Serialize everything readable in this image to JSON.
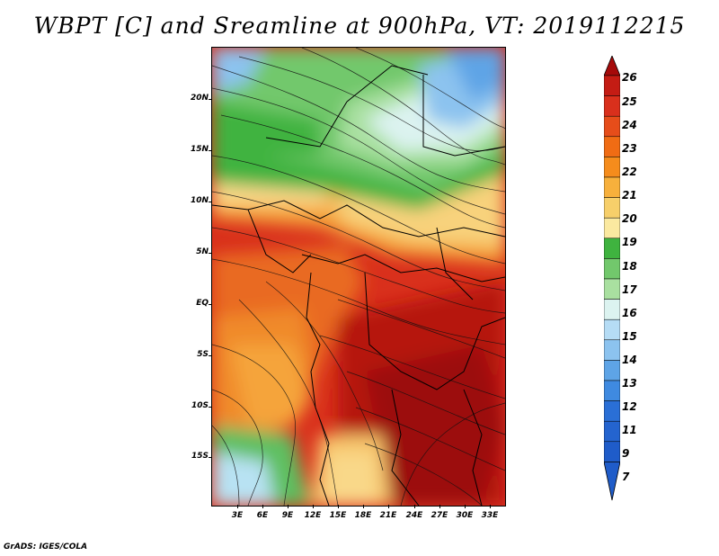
{
  "title": "WBPT [C] and Sreamline at 900hPa, VT: 2019112215",
  "footer": "GrADS: IGES/COLA",
  "map": {
    "lon_ticks": [
      "3E",
      "6E",
      "9E",
      "12E",
      "15E",
      "18E",
      "21E",
      "24E",
      "27E",
      "30E",
      "33E"
    ],
    "lat_ticks": [
      "20N",
      "15N",
      "10N",
      "5N",
      "EQ",
      "5S",
      "10S",
      "15S"
    ],
    "lon_range": [
      0,
      35
    ],
    "lat_range": [
      -20,
      24
    ]
  },
  "colorbar": {
    "labels": [
      "26",
      "25",
      "24",
      "23",
      "22",
      "21",
      "20",
      "19",
      "18",
      "17",
      "16",
      "15",
      "14",
      "13",
      "12",
      "11",
      "9",
      "7"
    ],
    "colors": [
      "#a50a0a",
      "#c41c14",
      "#d9301c",
      "#e64d1a",
      "#f06c14",
      "#f58c1c",
      "#f7b03c",
      "#f7cf6a",
      "#fbe9a0",
      "#3fb33f",
      "#72c86c",
      "#a9e0a0",
      "#dcf3f0",
      "#b5dcf5",
      "#8cc3ef",
      "#5ea4e6",
      "#3f8ae0",
      "#2a6fd6",
      "#1f5cc9"
    ]
  }
}
